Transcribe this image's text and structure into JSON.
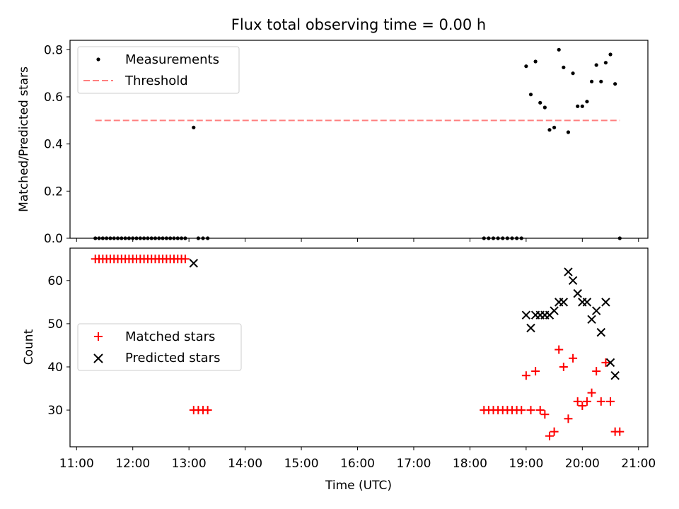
{
  "chart_data": [
    {
      "type": "scatter",
      "title": "Flux total observing time = 0.00 h",
      "xlabel": "",
      "ylabel": "Matched/Predicted stars",
      "xlim": [
        "10:53",
        "21:10"
      ],
      "ylim": [
        0.0,
        0.84
      ],
      "x_ticks": [
        "11:00",
        "12:00",
        "13:00",
        "14:00",
        "15:00",
        "16:00",
        "17:00",
        "18:00",
        "19:00",
        "20:00",
        "21:00"
      ],
      "y_ticks": [
        "0.0",
        "0.2",
        "0.4",
        "0.6",
        "0.8"
      ],
      "legend": {
        "placement": "upper-left",
        "entries": [
          "Measurements",
          "Threshold"
        ]
      },
      "threshold": {
        "name": "Threshold",
        "value": 0.5,
        "x_range": [
          "11:20",
          "20:40"
        ],
        "color": "#ff7f7f"
      },
      "series": [
        {
          "name": "Measurements",
          "color": "#000000",
          "points": [
            [
              "11:20",
              0
            ],
            [
              "11:24",
              0
            ],
            [
              "11:28",
              0
            ],
            [
              "11:32",
              0
            ],
            [
              "11:36",
              0
            ],
            [
              "11:40",
              0
            ],
            [
              "11:44",
              0
            ],
            [
              "11:48",
              0
            ],
            [
              "11:52",
              0
            ],
            [
              "11:56",
              0
            ],
            [
              "12:00",
              0
            ],
            [
              "12:04",
              0
            ],
            [
              "12:08",
              0
            ],
            [
              "12:12",
              0
            ],
            [
              "12:16",
              0
            ],
            [
              "12:20",
              0
            ],
            [
              "12:24",
              0
            ],
            [
              "12:28",
              0
            ],
            [
              "12:32",
              0
            ],
            [
              "12:36",
              0
            ],
            [
              "12:40",
              0
            ],
            [
              "12:44",
              0
            ],
            [
              "12:48",
              0
            ],
            [
              "12:52",
              0
            ],
            [
              "12:56",
              0
            ],
            [
              "13:05",
              0.47
            ],
            [
              "13:10",
              0
            ],
            [
              "13:15",
              0
            ],
            [
              "13:20",
              0
            ],
            [
              "18:15",
              0
            ],
            [
              "18:20",
              0
            ],
            [
              "18:25",
              0
            ],
            [
              "18:30",
              0
            ],
            [
              "18:35",
              0
            ],
            [
              "18:40",
              0
            ],
            [
              "18:45",
              0
            ],
            [
              "18:50",
              0
            ],
            [
              "18:55",
              0
            ],
            [
              "19:00",
              0.73
            ],
            [
              "19:05",
              0.61
            ],
            [
              "19:10",
              0.75
            ],
            [
              "19:15",
              0.575
            ],
            [
              "19:20",
              0.555
            ],
            [
              "19:25",
              0.46
            ],
            [
              "19:30",
              0.47
            ],
            [
              "19:35",
              0.8
            ],
            [
              "19:40",
              0.725
            ],
            [
              "19:45",
              0.45
            ],
            [
              "19:50",
              0.7
            ],
            [
              "19:55",
              0.56
            ],
            [
              "20:00",
              0.56
            ],
            [
              "20:05",
              0.58
            ],
            [
              "20:10",
              0.665
            ],
            [
              "20:15",
              0.735
            ],
            [
              "20:20",
              0.665
            ],
            [
              "20:25",
              0.745
            ],
            [
              "20:30",
              0.78
            ],
            [
              "20:35",
              0.655
            ],
            [
              "20:40",
              0.0
            ]
          ]
        }
      ]
    },
    {
      "type": "scatter",
      "title": "",
      "xlabel": "Time (UTC)",
      "ylabel": "Count",
      "xlim": [
        "10:53",
        "21:10"
      ],
      "ylim": [
        21.5,
        67.5
      ],
      "x_ticks": [
        "11:00",
        "12:00",
        "13:00",
        "14:00",
        "15:00",
        "16:00",
        "17:00",
        "18:00",
        "19:00",
        "20:00",
        "21:00"
      ],
      "y_ticks": [
        "30",
        "40",
        "50",
        "60"
      ],
      "legend": {
        "placement": "center-left",
        "entries": [
          "Matched stars",
          "Predicted stars"
        ]
      },
      "series": [
        {
          "name": "Matched stars",
          "marker": "plus",
          "color": "#ff0000",
          "points": [
            [
              "11:20",
              65
            ],
            [
              "11:24",
              65
            ],
            [
              "11:28",
              65
            ],
            [
              "11:32",
              65
            ],
            [
              "11:36",
              65
            ],
            [
              "11:40",
              65
            ],
            [
              "11:44",
              65
            ],
            [
              "11:48",
              65
            ],
            [
              "11:52",
              65
            ],
            [
              "11:56",
              65
            ],
            [
              "12:00",
              65
            ],
            [
              "12:04",
              65
            ],
            [
              "12:08",
              65
            ],
            [
              "12:12",
              65
            ],
            [
              "12:16",
              65
            ],
            [
              "12:20",
              65
            ],
            [
              "12:24",
              65
            ],
            [
              "12:28",
              65
            ],
            [
              "12:32",
              65
            ],
            [
              "12:36",
              65
            ],
            [
              "12:40",
              65
            ],
            [
              "12:44",
              65
            ],
            [
              "12:48",
              65
            ],
            [
              "12:52",
              65
            ],
            [
              "12:56",
              65
            ],
            [
              "13:05",
              30
            ],
            [
              "13:10",
              30
            ],
            [
              "13:15",
              30
            ],
            [
              "13:20",
              30
            ],
            [
              "18:15",
              30
            ],
            [
              "18:20",
              30
            ],
            [
              "18:25",
              30
            ],
            [
              "18:30",
              30
            ],
            [
              "18:35",
              30
            ],
            [
              "18:40",
              30
            ],
            [
              "18:45",
              30
            ],
            [
              "18:50",
              30
            ],
            [
              "18:55",
              30
            ],
            [
              "19:00",
              38
            ],
            [
              "19:05",
              30
            ],
            [
              "19:10",
              39
            ],
            [
              "19:15",
              30
            ],
            [
              "19:20",
              29
            ],
            [
              "19:25",
              24
            ],
            [
              "19:30",
              25
            ],
            [
              "19:35",
              44
            ],
            [
              "19:40",
              40
            ],
            [
              "19:45",
              28
            ],
            [
              "19:50",
              42
            ],
            [
              "19:55",
              32
            ],
            [
              "20:00",
              31
            ],
            [
              "20:05",
              32
            ],
            [
              "20:10",
              34
            ],
            [
              "20:15",
              39
            ],
            [
              "20:20",
              32
            ],
            [
              "20:25",
              41
            ],
            [
              "20:30",
              32
            ],
            [
              "20:35",
              25
            ],
            [
              "20:40",
              25
            ]
          ]
        },
        {
          "name": "Predicted stars",
          "marker": "x",
          "color": "#000000",
          "points": [
            [
              "13:05",
              64
            ],
            [
              "19:00",
              52
            ],
            [
              "19:05",
              49
            ],
            [
              "19:10",
              52
            ],
            [
              "19:15",
              52
            ],
            [
              "19:20",
              52
            ],
            [
              "19:25",
              52
            ],
            [
              "19:30",
              53
            ],
            [
              "19:35",
              55
            ],
            [
              "19:40",
              55
            ],
            [
              "19:45",
              62
            ],
            [
              "19:50",
              60
            ],
            [
              "19:55",
              57
            ],
            [
              "20:00",
              55
            ],
            [
              "20:05",
              55
            ],
            [
              "20:10",
              51
            ],
            [
              "20:15",
              53
            ],
            [
              "20:20",
              48
            ],
            [
              "20:25",
              55
            ],
            [
              "20:30",
              41
            ],
            [
              "20:35",
              38
            ]
          ]
        }
      ]
    }
  ]
}
